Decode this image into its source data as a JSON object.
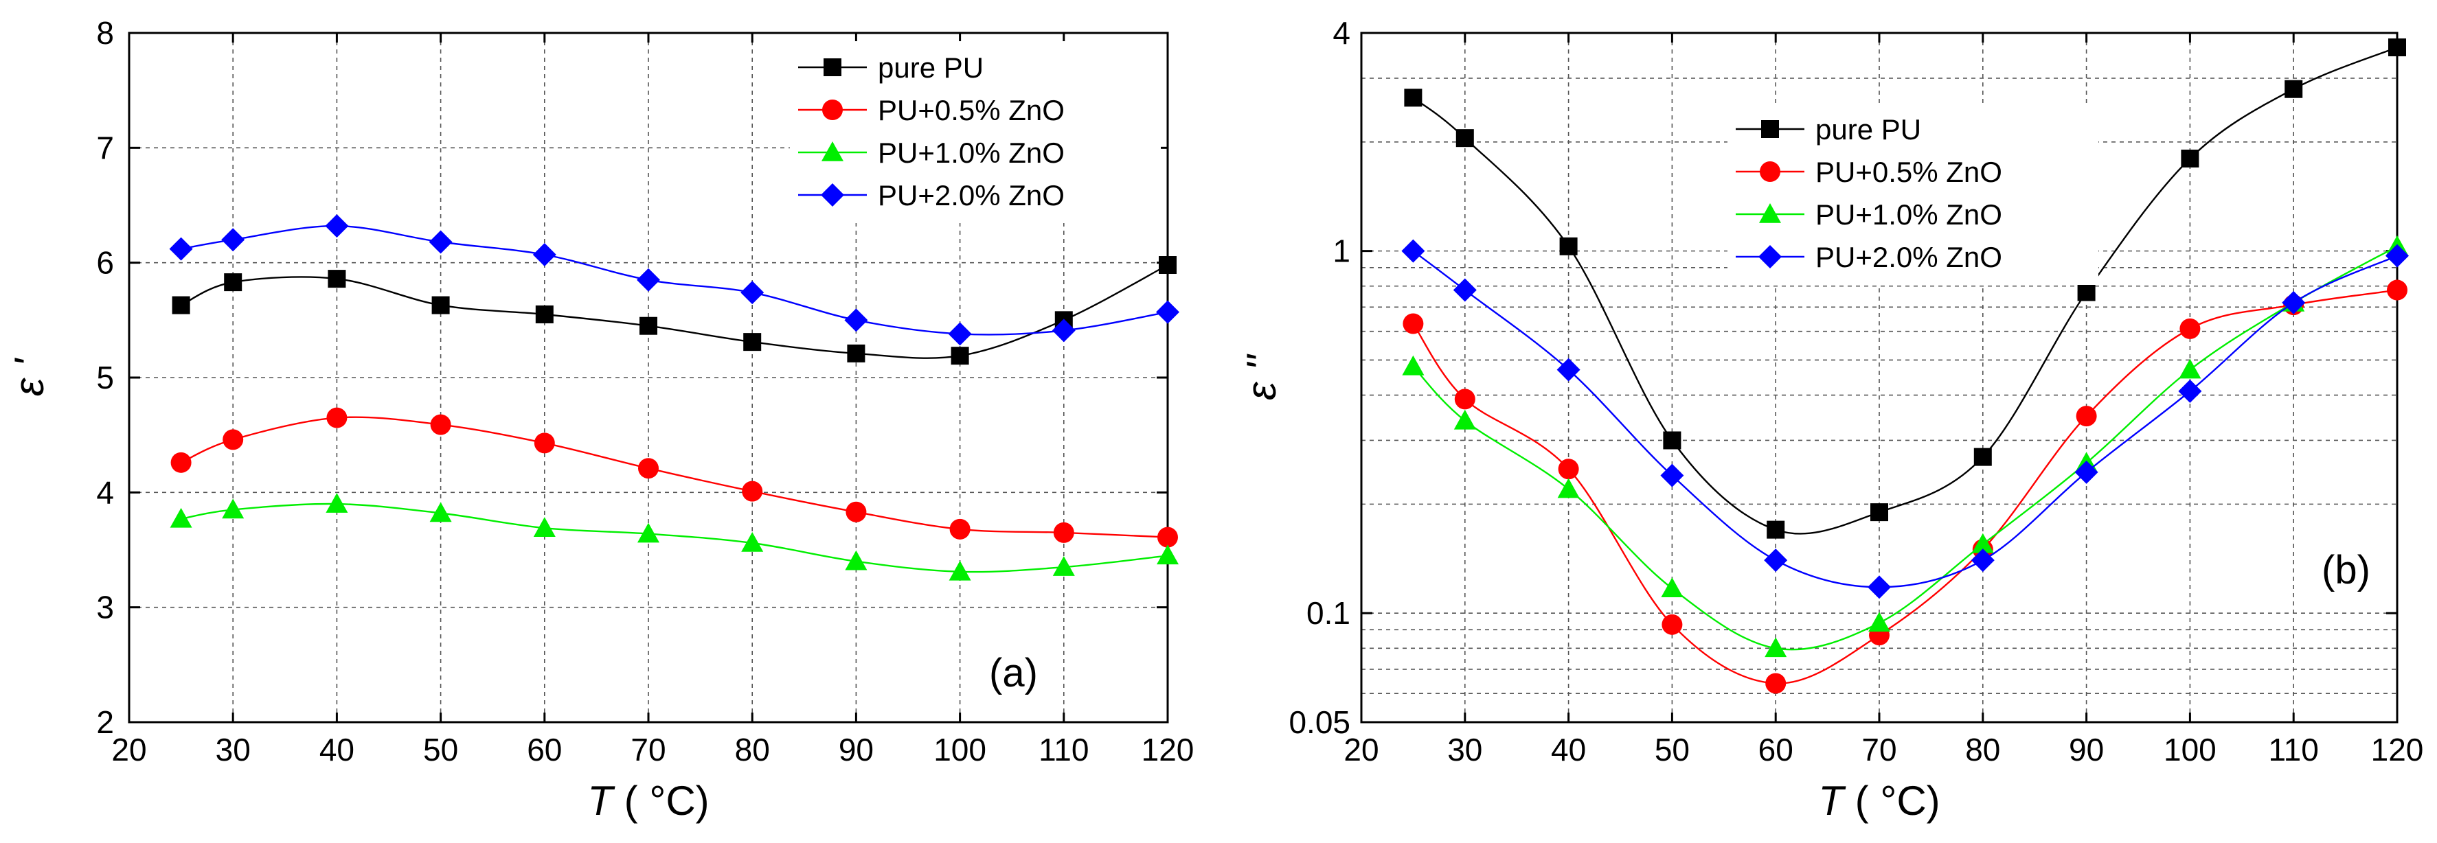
{
  "figure": {
    "panels": [
      "(a)",
      "(b)"
    ]
  },
  "chart_data": [
    {
      "type": "line",
      "panel_label": "(a)",
      "xlabel": "T",
      "xlabel_unit": "( °C)",
      "ylabel": "ε '",
      "xlim": [
        20,
        120
      ],
      "ylim": [
        2,
        8
      ],
      "xticks": [
        20,
        30,
        40,
        50,
        60,
        70,
        80,
        90,
        100,
        110,
        120
      ],
      "yticks": [
        2,
        3,
        4,
        5,
        6,
        7,
        8
      ],
      "grid": true,
      "legend_position": "top-right",
      "series": [
        {
          "name": "pure PU",
          "color": "#000000",
          "marker": "square",
          "x": [
            25,
            30,
            40,
            50,
            60,
            70,
            80,
            90,
            100,
            110,
            120
          ],
          "y": [
            5.63,
            5.83,
            5.86,
            5.63,
            5.55,
            5.45,
            5.31,
            5.21,
            5.19,
            5.5,
            5.98
          ]
        },
        {
          "name": "PU+0.5% ZnO",
          "color": "#ff0000",
          "marker": "circle",
          "x": [
            25,
            30,
            40,
            50,
            60,
            70,
            80,
            90,
            100,
            110,
            120
          ],
          "y": [
            4.26,
            4.46,
            4.65,
            4.59,
            4.43,
            4.21,
            4.01,
            3.83,
            3.68,
            3.65,
            3.61
          ]
        },
        {
          "name": "PU+1.0% ZnO",
          "color": "#00ee00",
          "marker": "triangle",
          "x": [
            25,
            30,
            40,
            50,
            60,
            70,
            80,
            90,
            100,
            110,
            120
          ],
          "y": [
            3.77,
            3.85,
            3.9,
            3.82,
            3.69,
            3.64,
            3.56,
            3.4,
            3.31,
            3.35,
            3.45
          ]
        },
        {
          "name": "PU+2.0% ZnO",
          "color": "#0000ff",
          "marker": "diamond",
          "x": [
            25,
            30,
            40,
            50,
            60,
            70,
            80,
            90,
            100,
            110,
            120
          ],
          "y": [
            6.12,
            6.2,
            6.32,
            6.18,
            6.07,
            5.85,
            5.74,
            5.5,
            5.38,
            5.41,
            5.57
          ]
        }
      ]
    },
    {
      "type": "line",
      "panel_label": "(b)",
      "xlabel": "T",
      "xlabel_unit": "( °C)",
      "ylabel": "ε ''",
      "yscale": "log",
      "xlim": [
        20,
        120
      ],
      "ylim": [
        0.05,
        4
      ],
      "xticks": [
        20,
        30,
        40,
        50,
        60,
        70,
        80,
        90,
        100,
        110,
        120
      ],
      "ytick_labels": [
        "0.05",
        "0.1",
        "1",
        "4"
      ],
      "ytick_values": [
        0.05,
        0.1,
        1,
        4
      ],
      "grid": true,
      "legend_position": "top-center",
      "series": [
        {
          "name": "pure PU",
          "color": "#000000",
          "marker": "square",
          "x": [
            25,
            30,
            40,
            50,
            60,
            70,
            80,
            90,
            100,
            110,
            120
          ],
          "y": [
            2.65,
            2.05,
            1.03,
            0.3,
            0.17,
            0.19,
            0.27,
            0.77,
            1.8,
            2.8,
            3.65
          ]
        },
        {
          "name": "PU+0.5% ZnO",
          "color": "#ff0000",
          "marker": "circle",
          "x": [
            25,
            30,
            40,
            50,
            60,
            70,
            80,
            90,
            100,
            110,
            120
          ],
          "y": [
            0.63,
            0.39,
            0.25,
            0.093,
            0.064,
            0.087,
            0.15,
            0.35,
            0.61,
            0.71,
            0.78
          ]
        },
        {
          "name": "PU+1.0% ZnO",
          "color": "#00ee00",
          "marker": "triangle",
          "x": [
            25,
            30,
            40,
            50,
            60,
            70,
            80,
            90,
            100,
            110,
            120
          ],
          "y": [
            0.48,
            0.34,
            0.22,
            0.117,
            0.08,
            0.094,
            0.155,
            0.26,
            0.47,
            0.72,
            1.03
          ]
        },
        {
          "name": "PU+2.0% ZnO",
          "color": "#0000ff",
          "marker": "diamond",
          "x": [
            25,
            30,
            40,
            50,
            60,
            70,
            80,
            90,
            100,
            110,
            120
          ],
          "y": [
            1.0,
            0.78,
            0.47,
            0.24,
            0.14,
            0.118,
            0.14,
            0.245,
            0.41,
            0.72,
            0.97
          ]
        }
      ]
    }
  ]
}
